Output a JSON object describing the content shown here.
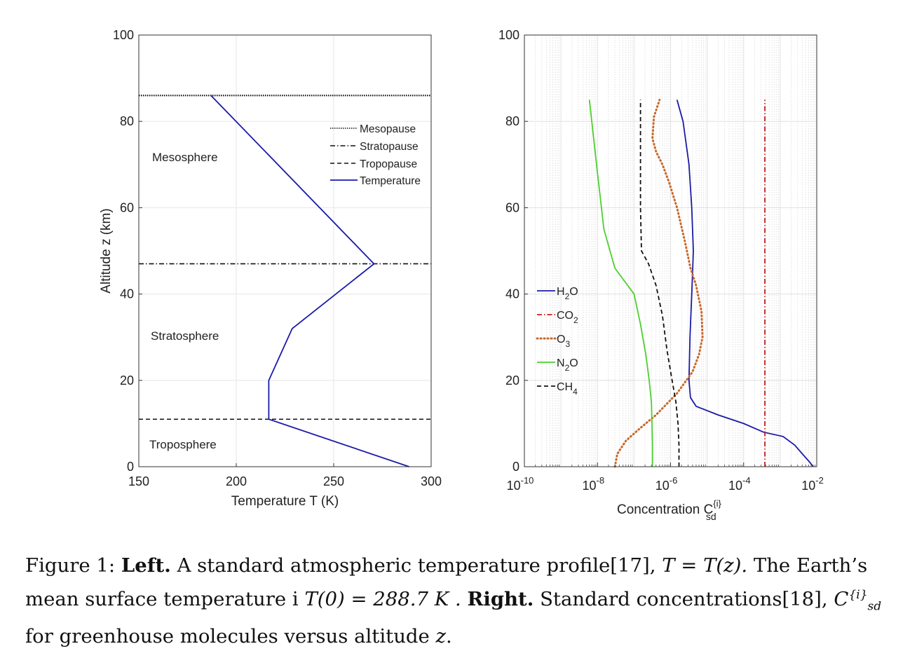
{
  "chart_data": [
    {
      "type": "line",
      "xlabel": "Temperature T (K)",
      "ylabel": "Altitude z (km)",
      "xlim": [
        150,
        300
      ],
      "ylim": [
        0,
        100
      ],
      "xticks": [
        150,
        200,
        250,
        300
      ],
      "yticks": [
        0,
        20,
        40,
        60,
        80,
        100
      ],
      "grid": true,
      "legend_position": "upper-right",
      "legend": [
        "Mesopause",
        "Stratopause",
        "Tropopause",
        "Temperature"
      ],
      "annotations": [
        "Mesosphere",
        "Stratosphere",
        "Troposphere"
      ],
      "series": [
        {
          "name": "Temperature",
          "color": "#1a1aa8",
          "style": "solid",
          "x": [
            288.7,
            216.7,
            216.7,
            228.7,
            270.7,
            187.0
          ],
          "y": [
            0,
            11,
            20,
            32,
            47,
            86
          ]
        }
      ],
      "hlines": [
        {
          "name": "Mesopause",
          "y": 86,
          "style": "dotted"
        },
        {
          "name": "Stratopause",
          "y": 47,
          "style": "dashdot"
        },
        {
          "name": "Tropopause",
          "y": 11,
          "style": "dashed"
        }
      ]
    },
    {
      "type": "line",
      "xscale": "log",
      "xlabel": "Concentration C",
      "xlabel_sup": "{i}",
      "xlabel_sub": "sd",
      "ylabel": "",
      "xlim": [
        1e-10,
        0.01
      ],
      "ylim": [
        0,
        100
      ],
      "xtick_exponents": [
        -10,
        -8,
        -6,
        -4,
        -2
      ],
      "yticks": [
        0,
        20,
        40,
        60,
        80,
        100
      ],
      "grid": true,
      "legend_position": "middle-left",
      "series": [
        {
          "name": "H2O",
          "label": "H",
          "sub": "2",
          "tail": "O",
          "color": "#1a1aa8",
          "style": "solid",
          "x": [
            0.008,
            0.0065,
            0.004,
            0.0025,
            0.0012,
            0.00035,
            0.0001,
            2e-05,
            5e-06,
            3.5e-06,
            3.2e-06,
            3.4e-06,
            3.8e-06,
            4e-06,
            4.2e-06,
            3.8e-06,
            3.2e-06,
            2.2e-06,
            1.5e-06
          ],
          "y": [
            0,
            1,
            3,
            5,
            7,
            8,
            10,
            12,
            14,
            16,
            20,
            30,
            40,
            45,
            50,
            60,
            70,
            80,
            85
          ]
        },
        {
          "name": "CO2",
          "label": "CO",
          "sub": "2",
          "tail": "",
          "color": "#c02020",
          "style": "dashdot",
          "x": [
            0.00038,
            0.00038
          ],
          "y": [
            0,
            85
          ]
        },
        {
          "name": "O3",
          "label": "O",
          "sub": "3",
          "tail": "",
          "color": "#c8682a",
          "style": "dotted",
          "x": [
            3e-08,
            3.5e-08,
            6e-08,
            1.5e-07,
            4e-07,
            1.5e-06,
            4e-06,
            6e-06,
            7.5e-06,
            7e-06,
            5e-06,
            3.5e-06,
            2.5e-06,
            1.5e-06,
            9e-07,
            6e-07,
            4e-07,
            3.2e-07,
            3.5e-07,
            5e-07
          ],
          "y": [
            0,
            3,
            6,
            9,
            12,
            17,
            22,
            26,
            30,
            36,
            42,
            46,
            52,
            60,
            66,
            70,
            73,
            76,
            81,
            85
          ]
        },
        {
          "name": "N2O",
          "label": "N",
          "sub": "2",
          "tail": "O",
          "color": "#4ccf2e",
          "style": "solid",
          "x": [
            3.2e-07,
            3.2e-07,
            3.1e-07,
            3e-07,
            2.6e-07,
            2.1e-07,
            1.5e-07,
            1e-07,
            3e-08,
            1.5e-08,
            1e-08,
            6e-09
          ],
          "y": [
            0,
            5,
            10,
            15,
            20,
            26,
            33,
            40,
            46,
            55,
            68,
            85
          ]
        },
        {
          "name": "CH4",
          "label": "CH",
          "sub": "4",
          "tail": "",
          "color": "#111111",
          "style": "dashed",
          "x": [
            1.7e-06,
            1.7e-06,
            1.6e-06,
            1.4e-06,
            1.1e-06,
            8e-07,
            6e-07,
            4e-07,
            2.5e-07,
            1.6e-07,
            1.5e-07,
            1.5e-07
          ],
          "y": [
            0,
            5,
            10,
            15,
            20,
            27,
            35,
            42,
            47,
            50,
            60,
            85
          ]
        }
      ]
    }
  ],
  "caption": {
    "fig": "Figure 1:",
    "left_bold": "Left.",
    "left_text": "A standard atmospheric temperature profile[17],",
    "eq1": "T = T(z).",
    "earth": "The Earth’s mean surface temperature i",
    "eq2": "T(0) = 288.7 K .",
    "right_bold": "Right.",
    "right_text": "Standard concentrations[18],",
    "csym": "C",
    "csup": "{i}",
    "csub": "sd",
    "for_text": "for greenhouse molecules versus altitude",
    "zsym": "z",
    "period": "."
  }
}
